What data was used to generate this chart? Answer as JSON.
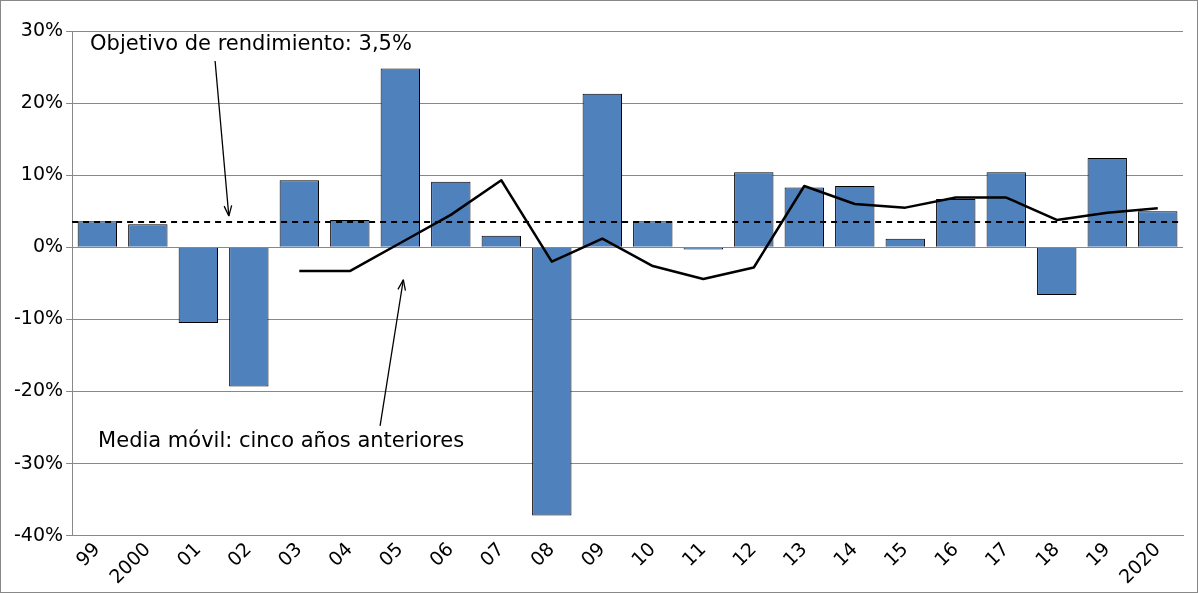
{
  "chart_data": {
    "type": "bar",
    "categories": [
      "99",
      "2000",
      "01",
      "02",
      "03",
      "04",
      "05",
      "06",
      "07",
      "08",
      "09",
      "10",
      "11",
      "12",
      "13",
      "14",
      "15",
      "16",
      "17",
      "18",
      "19",
      "2020"
    ],
    "series": [
      {
        "color": "#4f81bd",
        "values": [
          3.6,
          3.2,
          -10.5,
          -19.3,
          9.3,
          3.8,
          24.8,
          9.1,
          1.6,
          -37.2,
          21.3,
          3.6,
          -0.3,
          10.4,
          8.3,
          8.5,
          1.2,
          6.7,
          10.4,
          -6.6,
          12.4,
          5.0
        ]
      },
      {
        "type": "line",
        "name": "Media móvil: cinco años anteriores",
        "color": "#000000",
        "values": [
          null,
          null,
          null,
          null,
          -3.3,
          -3.3,
          0.6,
          4.5,
          9.3,
          -2.0,
          1.2,
          -2.6,
          -4.4,
          -2.8,
          8.5,
          6.0,
          5.5,
          6.9,
          6.9,
          3.8,
          4.8,
          5.4
        ]
      }
    ],
    "ylim": [
      -40,
      30
    ],
    "yticks": [
      {
        "value": -40,
        "label": "-40%"
      },
      {
        "value": -30,
        "label": "-30%"
      },
      {
        "value": -20,
        "label": "-20%"
      },
      {
        "value": -10,
        "label": "-10%"
      },
      {
        "value": 0,
        "label": "0%"
      },
      {
        "value": 10,
        "label": "10%"
      },
      {
        "value": 20,
        "label": "20%"
      },
      {
        "value": 30,
        "label": "30%"
      }
    ],
    "ref_lines": [
      {
        "axis": "y",
        "value": 3.5,
        "label": "Objetivo de rendimiento: 3,5%",
        "color": "#000000",
        "line_style": "dashed"
      }
    ],
    "grid": "y",
    "legend": false,
    "marker": "none"
  }
}
